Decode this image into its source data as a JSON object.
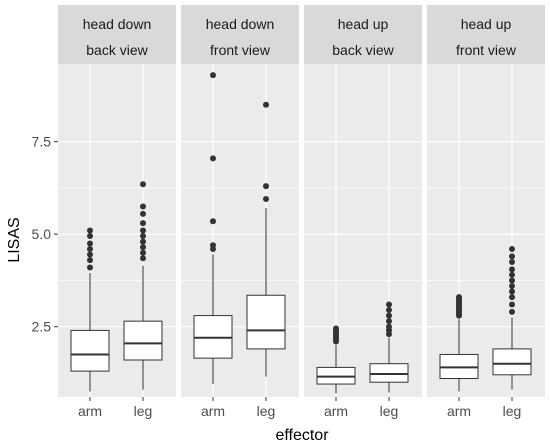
{
  "chart_data": {
    "type": "boxplot",
    "xlabel": "effector",
    "ylabel": "LISAS",
    "ylim": [
      0.6,
      9.6
    ],
    "yticks": [
      {
        "value": 2.5,
        "label": "2.5"
      },
      {
        "value": 5.0,
        "label": "5.0"
      },
      {
        "value": 7.5,
        "label": "7.5"
      }
    ],
    "categories": [
      "arm",
      "leg"
    ],
    "panels": [
      {
        "strip": [
          "head down",
          "back view"
        ],
        "boxes": [
          {
            "category": "arm",
            "lower_whisker": 0.75,
            "q1": 1.3,
            "median": 1.75,
            "q3": 2.4,
            "upper_whisker": 3.95,
            "outliers": [
              4.1,
              4.3,
              4.45,
              4.6,
              4.75,
              4.95,
              5.1
            ]
          },
          {
            "category": "leg",
            "lower_whisker": 0.8,
            "q1": 1.6,
            "median": 2.05,
            "q3": 2.65,
            "upper_whisker": 4.15,
            "outliers": [
              4.35,
              4.5,
              4.65,
              4.8,
              4.95,
              5.1,
              5.3,
              5.55,
              5.75,
              6.35
            ]
          }
        ]
      },
      {
        "strip": [
          "head down",
          "front view"
        ],
        "boxes": [
          {
            "category": "arm",
            "lower_whisker": 0.95,
            "q1": 1.65,
            "median": 2.2,
            "q3": 2.8,
            "upper_whisker": 4.45,
            "outliers": [
              4.6,
              4.7,
              5.35,
              7.05,
              9.3
            ]
          },
          {
            "category": "leg",
            "lower_whisker": 1.15,
            "q1": 1.9,
            "median": 2.4,
            "q3": 3.35,
            "upper_whisker": 5.7,
            "outliers": [
              5.95,
              6.3,
              8.5
            ]
          }
        ]
      },
      {
        "strip": [
          "head up",
          "back view"
        ],
        "boxes": [
          {
            "category": "arm",
            "lower_whisker": 0.7,
            "q1": 0.95,
            "median": 1.15,
            "q3": 1.4,
            "upper_whisker": 2.0,
            "outliers": [
              2.1,
              2.15,
              2.2,
              2.25,
              2.3,
              2.35,
              2.4,
              2.45
            ]
          },
          {
            "category": "leg",
            "lower_whisker": 0.72,
            "q1": 1.0,
            "median": 1.22,
            "q3": 1.5,
            "upper_whisker": 2.2,
            "outliers": [
              2.3,
              2.4,
              2.5,
              2.65,
              2.8,
              2.95,
              3.1
            ]
          }
        ]
      },
      {
        "strip": [
          "head up",
          "front view"
        ],
        "boxes": [
          {
            "category": "arm",
            "lower_whisker": 0.75,
            "q1": 1.1,
            "median": 1.4,
            "q3": 1.75,
            "upper_whisker": 2.7,
            "outliers": [
              2.8,
              2.85,
              2.9,
              2.95,
              3.0,
              3.05,
              3.1,
              3.15,
              3.2,
              3.25,
              3.3
            ]
          },
          {
            "category": "leg",
            "lower_whisker": 0.8,
            "q1": 1.2,
            "median": 1.5,
            "q3": 1.9,
            "upper_whisker": 2.75,
            "outliers": [
              2.9,
              3.1,
              3.3,
              3.45,
              3.6,
              3.75,
              3.9,
              4.05,
              4.25,
              4.4,
              4.6
            ]
          }
        ]
      }
    ],
    "colors": {
      "panel_background": "#ebebeb",
      "strip_background": "#d9d9d9",
      "grid": "#ffffff",
      "box_fill": "#ffffff",
      "box_line": "#333333",
      "outlier": "#333333"
    }
  }
}
